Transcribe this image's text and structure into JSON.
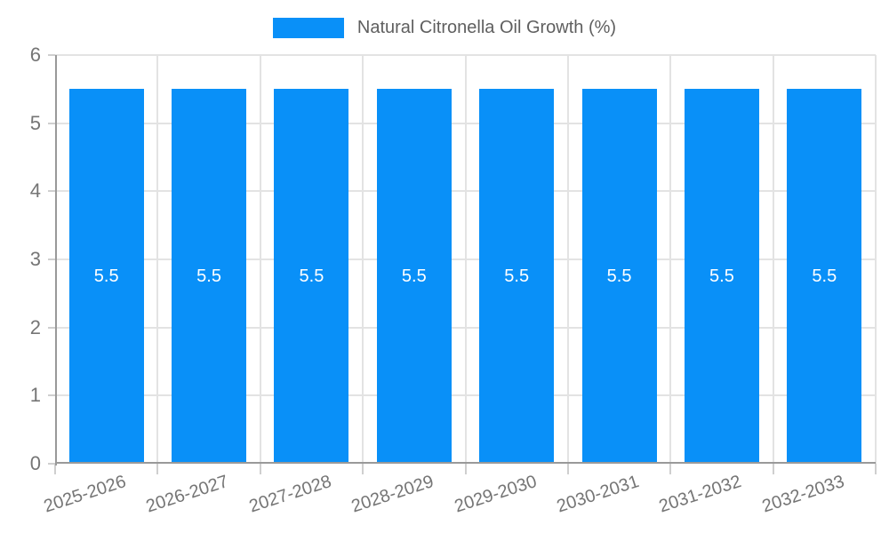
{
  "legend": {
    "series_label": "Natural Citronella Oil Growth (%)"
  },
  "chart_data": {
    "type": "bar",
    "title": "Natural Citronella Oil Growth (%)",
    "categories": [
      "2025-2026",
      "2026-2027",
      "2027-2028",
      "2028-2029",
      "2029-2030",
      "2030-2031",
      "2031-2032",
      "2032-2033"
    ],
    "values": [
      5.5,
      5.5,
      5.5,
      5.5,
      5.5,
      5.5,
      5.5,
      5.5
    ],
    "bar_labels": [
      "5.5",
      "5.5",
      "5.5",
      "5.5",
      "5.5",
      "5.5",
      "5.5",
      "5.5"
    ],
    "xlabel": "",
    "ylabel": "",
    "ylim": [
      0,
      6
    ],
    "yticks": [
      0,
      1,
      2,
      3,
      4,
      5,
      6
    ],
    "grid": true,
    "legend_position": "top-center",
    "colors": {
      "bar": "#0990f8",
      "value_label": "#ffffff",
      "gridline": "#e3e3e3",
      "axis": "#999999",
      "tick": "#cfcfcf",
      "tick_label": "#757575",
      "legend_text": "#5f5f5f"
    }
  }
}
